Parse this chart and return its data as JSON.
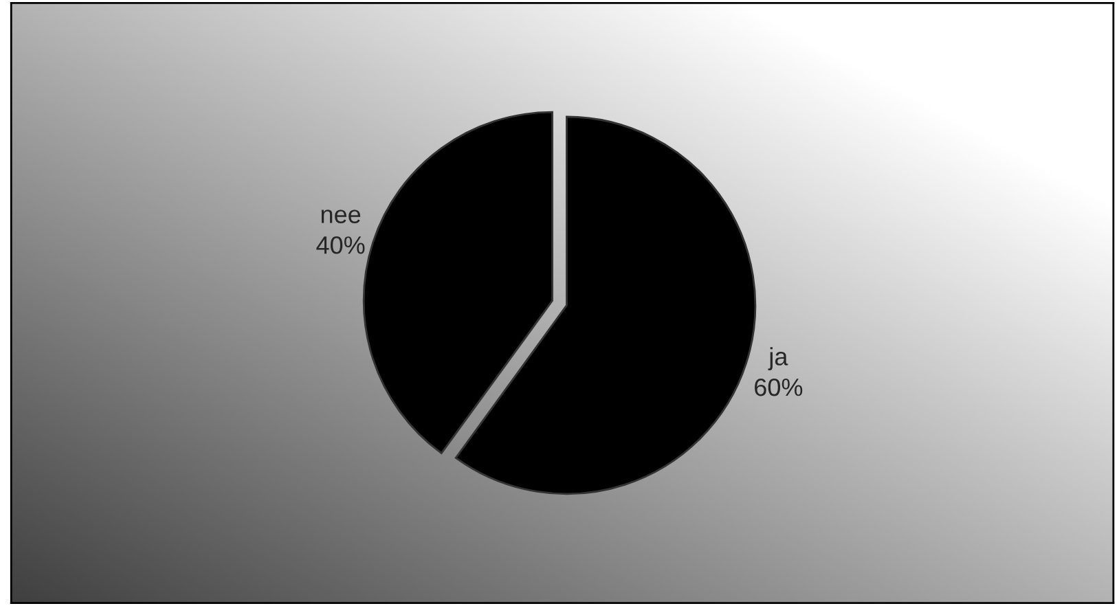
{
  "chart_data": {
    "type": "pie",
    "categories": [
      "ja",
      "nee"
    ],
    "values": [
      60,
      40
    ],
    "value_labels": [
      "60%",
      "40%"
    ],
    "colors": [
      "#000000",
      "#000000"
    ]
  }
}
